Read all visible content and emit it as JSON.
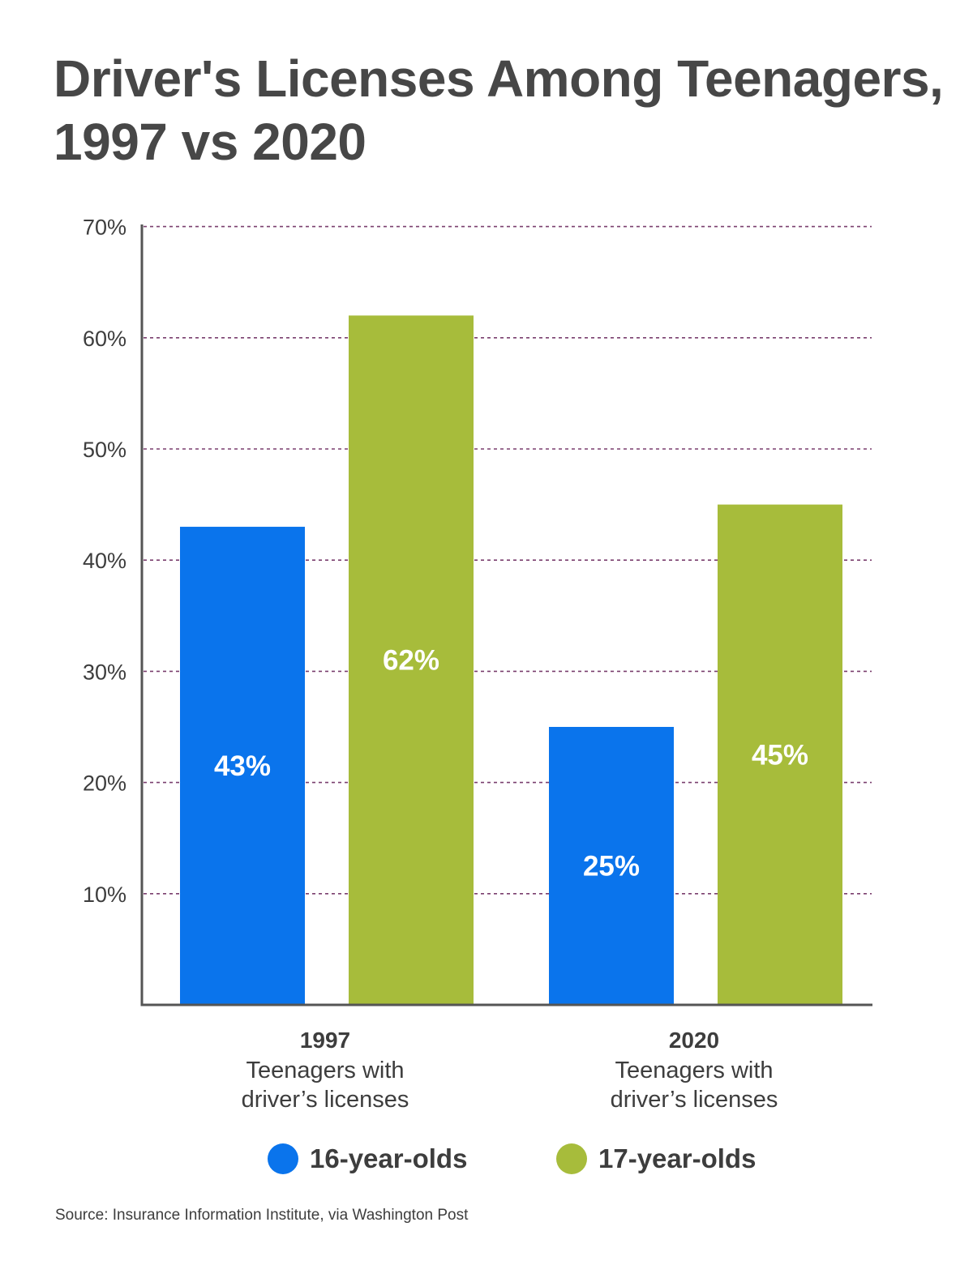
{
  "title_lines": [
    "Driver's Licenses Among Teenagers,",
    "1997 vs 2020"
  ],
  "source": "Source: Insurance Information Institute, via Washington Post",
  "legend": [
    {
      "label": "16-year-olds",
      "color": "#0a74ec"
    },
    {
      "label": "17-year-olds",
      "color": "#a7bc3b"
    }
  ],
  "chart_data": {
    "type": "bar",
    "title": "Driver's Licenses Among Teenagers, 1997 vs 2020",
    "categories": [
      {
        "year": "1997",
        "desc_lines": [
          "Teenagers with",
          "driver’s licenses"
        ]
      },
      {
        "year": "2020",
        "desc_lines": [
          "Teenagers with",
          "driver’s licenses"
        ]
      }
    ],
    "series": [
      {
        "name": "16-year-olds",
        "color": "#0a74ec",
        "values": [
          43,
          25
        ],
        "labels": [
          "43%",
          "25%"
        ]
      },
      {
        "name": "17-year-olds",
        "color": "#a7bc3b",
        "values": [
          62,
          45
        ],
        "labels": [
          "62%",
          "45%"
        ]
      }
    ],
    "ylim": [
      0,
      70
    ],
    "yticks": [
      10,
      20,
      30,
      40,
      50,
      60,
      70
    ],
    "ytick_labels": [
      "10%",
      "20%",
      "30%",
      "40%",
      "50%",
      "60%",
      "70%"
    ],
    "grid": true,
    "grid_color": "#7a3f6e",
    "axis_color": "#555555",
    "legend_position": "bottom"
  }
}
